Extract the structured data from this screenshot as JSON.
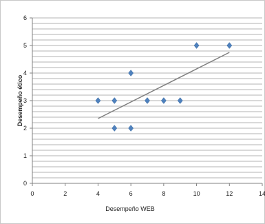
{
  "chart_data": {
    "type": "scatter",
    "title": "",
    "xlabel": "Desempeño WEB",
    "ylabel": "Desempeño ético",
    "xlim": [
      0,
      14
    ],
    "ylim": [
      0,
      6
    ],
    "x_ticks": [
      "0",
      "2",
      "4",
      "6",
      "8",
      "10",
      "12",
      "14"
    ],
    "y_ticks": [
      "0",
      "1",
      "2",
      "3",
      "4",
      "5",
      "6"
    ],
    "grid": "horizontal",
    "y_minor_step": 0.2,
    "marker": "diamond",
    "marker_color": "#4f81bd",
    "trendline_color": "#7f7f7f",
    "series": [
      {
        "points": [
          {
            "x": 4,
            "y": 3
          },
          {
            "x": 5,
            "y": 3
          },
          {
            "x": 5,
            "y": 2
          },
          {
            "x": 6,
            "y": 2
          },
          {
            "x": 6,
            "y": 4
          },
          {
            "x": 7,
            "y": 3
          },
          {
            "x": 8,
            "y": 3
          },
          {
            "x": 9,
            "y": 3
          },
          {
            "x": 10,
            "y": 5
          },
          {
            "x": 12,
            "y": 5
          }
        ]
      }
    ],
    "trendline": {
      "x1": 4,
      "y1": 2.35,
      "x2": 12,
      "y2": 4.75
    }
  }
}
